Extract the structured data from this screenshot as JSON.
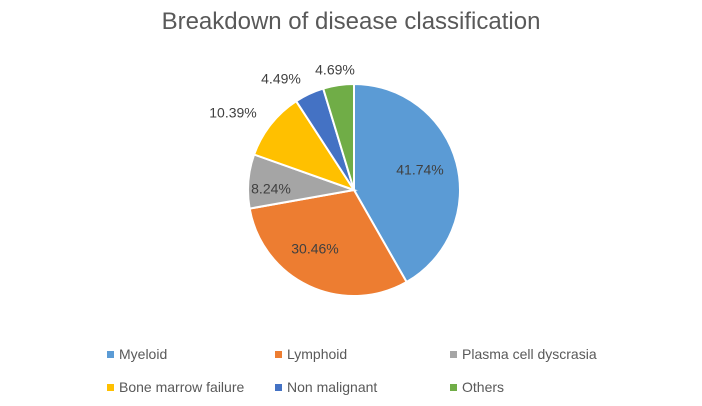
{
  "chart_data": {
    "type": "pie",
    "title": "Breakdown of disease classification",
    "categories": [
      "Myeloid",
      "Lymphoid",
      "Plasma cell dyscrasia",
      "Bone marrow failure",
      "Non malignant",
      "Others"
    ],
    "values": [
      41.74,
      30.46,
      8.24,
      10.39,
      4.49,
      4.69
    ],
    "labels": [
      "41.74%",
      "30.46%",
      "8.24%",
      "10.39%",
      "4.49%",
      "4.69%"
    ],
    "colors": [
      "#5B9BD5",
      "#ED7D31",
      "#A5A5A5",
      "#FFC000",
      "#4472C4",
      "#70AD47"
    ],
    "legend_position": "bottom"
  }
}
